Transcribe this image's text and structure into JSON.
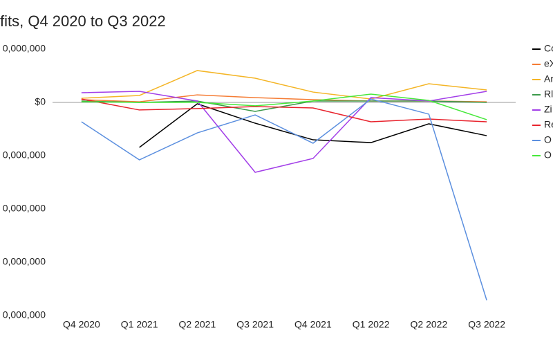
{
  "chart_data": {
    "type": "line",
    "title": "fits, Q4 2020 to Q3 2022",
    "categories": [
      "Q4 2020",
      "Q1 2021",
      "Q2 2021",
      "Q3 2021",
      "Q4 2021",
      "Q1 2022",
      "Q2 2022",
      "Q3 2022"
    ],
    "ylim": [
      -2000000000,
      500000000
    ],
    "yticks": [
      {
        "value": 500000000,
        "label": "0,000,000"
      },
      {
        "value": 0,
        "label": "$0"
      },
      {
        "value": -500000000,
        "label": "0,000,000"
      },
      {
        "value": -1000000000,
        "label": "0,000,000"
      },
      {
        "value": -1500000000,
        "label": "0,000,000"
      },
      {
        "value": -2000000000,
        "label": "0,000,000"
      }
    ],
    "grid": false,
    "legend": "right",
    "series": [
      {
        "name": "Co",
        "color": "#000000",
        "values": [
          null,
          -422000000,
          -13000000,
          -195000000,
          -351000000,
          -377000000,
          -201000000,
          -312000000
        ]
      },
      {
        "name": "eX",
        "color": "#f57c34",
        "values": [
          26000000,
          6000000,
          71000000,
          45000000,
          26000000,
          13000000,
          13000000,
          6000000
        ]
      },
      {
        "name": "Ar",
        "color": "#f4b526",
        "values": [
          39000000,
          65000000,
          299000000,
          227000000,
          97000000,
          32000000,
          175000000,
          117000000
        ]
      },
      {
        "name": "Rl",
        "color": "#3c9a4a",
        "values": [
          13000000,
          0,
          13000000,
          -84000000,
          13000000,
          13000000,
          13000000,
          0
        ]
      },
      {
        "name": "Zi",
        "color": "#a23ee8",
        "values": [
          91000000,
          104000000,
          13000000,
          -656000000,
          -526000000,
          45000000,
          13000000,
          104000000
        ]
      },
      {
        "name": "Re",
        "color": "#e8232d",
        "values": [
          32000000,
          -71000000,
          -58000000,
          -39000000,
          -52000000,
          -182000000,
          -156000000,
          -182000000
        ]
      },
      {
        "name": "O",
        "color": "#5b8fdf",
        "values": [
          -182000000,
          -539000000,
          -286000000,
          -117000000,
          -383000000,
          32000000,
          -110000000,
          -1857000000
        ]
      },
      {
        "name": "O",
        "color": "#46e83a",
        "values": [
          6000000,
          0,
          0,
          -32000000,
          13000000,
          78000000,
          19000000,
          -162000000
        ]
      }
    ]
  }
}
